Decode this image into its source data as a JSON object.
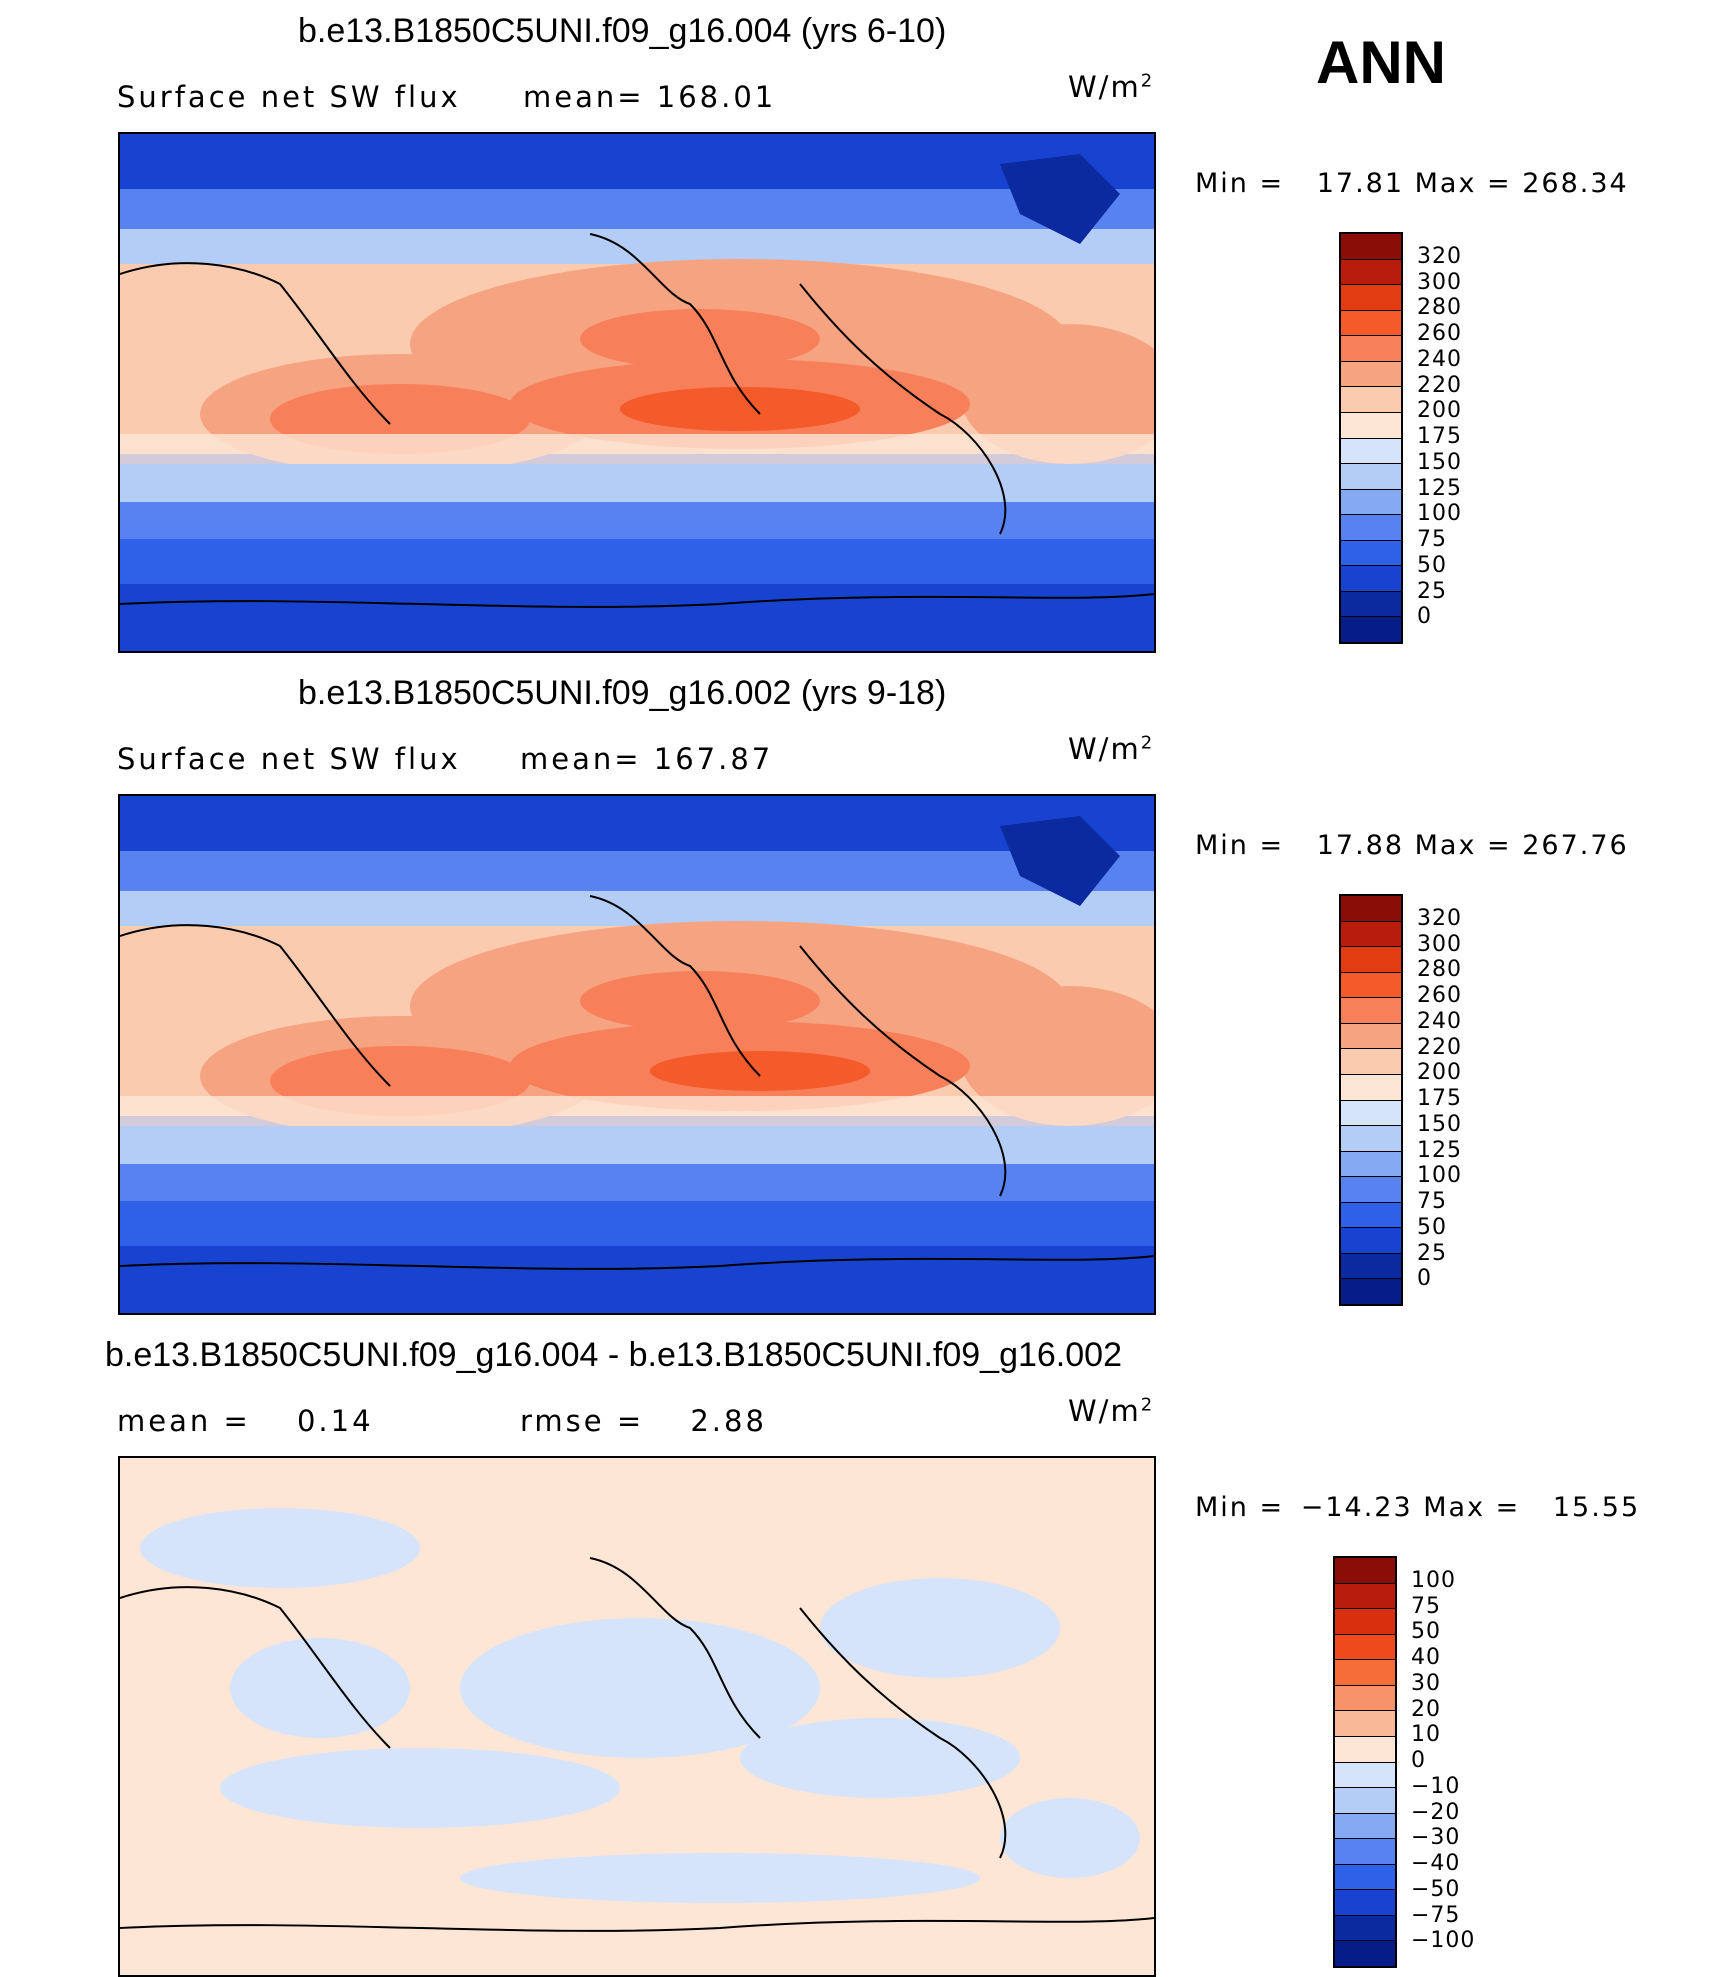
{
  "season": "ANN",
  "variable": "Surface net SW flux",
  "units_base": "W/m",
  "units_exp": "2",
  "chart_data": [
    {
      "type": "heatmap",
      "title": "b.e13.B1850C5UNI.f09_g16.004 (yrs 6-10)",
      "subtitle": "Surface net SW flux",
      "stat_label": "mean=",
      "stat_value": "168.01",
      "min_label": "Min =",
      "min_value": "17.81",
      "max_label": "Max =",
      "max_value": "268.34",
      "colorbar_levels": [
        "320",
        "300",
        "280",
        "260",
        "240",
        "220",
        "200",
        "175",
        "150",
        "125",
        "100",
        "75",
        "50",
        "25",
        "0"
      ],
      "colorbar_colors": [
        "#8a0d08",
        "#b81c0c",
        "#e23c13",
        "#f55a2a",
        "#f7805a",
        "#f6a382",
        "#fbcbb0",
        "#fde6d6",
        "#d5e4fb",
        "#b4cdf7",
        "#86a9f3",
        "#5882ef",
        "#2f60e8",
        "#1842d0",
        "#0b2aa0",
        "#061c86"
      ]
    },
    {
      "type": "heatmap",
      "title": "b.e13.B1850C5UNI.f09_g16.002 (yrs 9-18)",
      "subtitle": "Surface net SW flux",
      "stat_label": "mean=",
      "stat_value": "167.87",
      "min_label": "Min =",
      "min_value": "17.88",
      "max_label": "Max =",
      "max_value": "267.76",
      "colorbar_levels": [
        "320",
        "300",
        "280",
        "260",
        "240",
        "220",
        "200",
        "175",
        "150",
        "125",
        "100",
        "75",
        "50",
        "25",
        "0"
      ],
      "colorbar_colors": [
        "#8a0d08",
        "#b81c0c",
        "#e23c13",
        "#f55a2a",
        "#f7805a",
        "#f6a382",
        "#fbcbb0",
        "#fde6d6",
        "#d5e4fb",
        "#b4cdf7",
        "#86a9f3",
        "#5882ef",
        "#2f60e8",
        "#1842d0",
        "#0b2aa0",
        "#061c86"
      ]
    },
    {
      "type": "heatmap",
      "title": "b.e13.B1850C5UNI.f09_g16.004 - b.e13.B1850C5UNI.f09_g16.002",
      "mean_label": "mean =",
      "mean_value": "0.14",
      "rmse_label": "rmse =",
      "rmse_value": "2.88",
      "min_label": "Min =",
      "min_value": "−14.23",
      "max_label": "Max =",
      "max_value": "15.55",
      "colorbar_levels": [
        "100",
        "75",
        "50",
        "40",
        "30",
        "20",
        "10",
        "0",
        "−10",
        "−20",
        "−30",
        "−40",
        "−50",
        "−75",
        "−100"
      ],
      "colorbar_colors": [
        "#8a0d08",
        "#b81c0c",
        "#d8300f",
        "#ee4a1c",
        "#f56e3a",
        "#f7926a",
        "#f9b898",
        "#fde6d6",
        "#d5e4fb",
        "#b4cdf7",
        "#86a9f3",
        "#5882ef",
        "#2f60e8",
        "#1842d0",
        "#0b2aa0",
        "#061c86"
      ]
    }
  ]
}
